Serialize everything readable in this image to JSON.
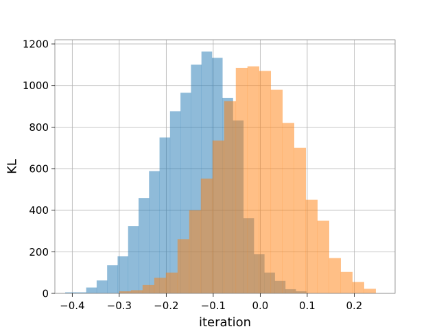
{
  "chart_data": {
    "type": "bar",
    "title": "",
    "xlabel": "iteration",
    "ylabel": "KL",
    "xlim": [
      -0.437,
      0.287
    ],
    "ylim": [
      0,
      1220
    ],
    "grid": true,
    "xticks": [
      -0.4,
      -0.3,
      -0.2,
      -0.1,
      0.0,
      0.1,
      0.2
    ],
    "xtick_labels": [
      "−0.4",
      "−0.3",
      "−0.2",
      "−0.1",
      "0.0",
      "0.1",
      "0.2"
    ],
    "yticks": [
      0,
      200,
      400,
      600,
      800,
      1000,
      1200
    ],
    "ytick_labels": [
      "0",
      "200",
      "400",
      "600",
      "800",
      "1000",
      "1200"
    ],
    "series": [
      {
        "color": "#1f77b4",
        "opacity": 0.5,
        "bin_start": -0.415,
        "bin_width": 0.0223,
        "values": [
          5,
          5,
          28,
          62,
          135,
          178,
          323,
          458,
          588,
          750,
          876,
          965,
          1100,
          1163,
          1133,
          940,
          832,
          362,
          188,
          100,
          60,
          20,
          10
        ]
      },
      {
        "color": "#ff7f0e",
        "opacity": 0.5,
        "bin_start": -0.3,
        "bin_width": 0.0248,
        "values": [
          10,
          15,
          40,
          75,
          100,
          260,
          400,
          552,
          735,
          925,
          1085,
          1092,
          1070,
          980,
          820,
          700,
          450,
          350,
          170,
          103,
          55,
          22
        ]
      }
    ]
  }
}
